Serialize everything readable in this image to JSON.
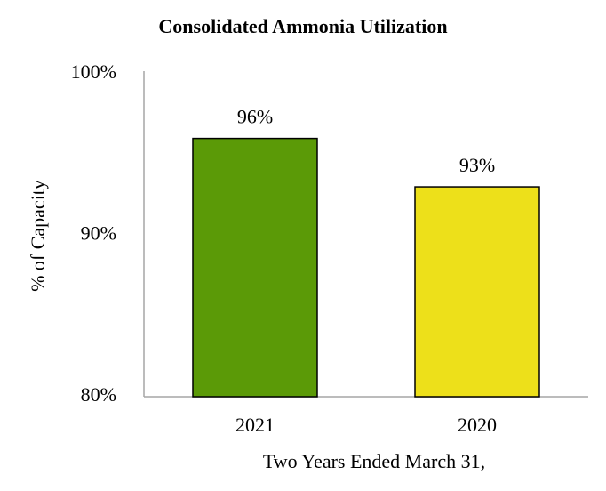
{
  "chart_data": {
    "type": "bar",
    "title": "Consolidated Ammonia Utilization",
    "y_label": "% of Capacity",
    "x_label": "Two Years Ended March 31,",
    "categories": [
      "2021",
      "2020"
    ],
    "values": [
      96,
      93
    ],
    "value_labels": [
      "96%",
      "93%"
    ],
    "colors": [
      "#5b9a07",
      "#ede01a"
    ],
    "ylim": [
      80,
      100
    ],
    "yticks": [
      {
        "value": 80,
        "label": "80%"
      },
      {
        "value": 90,
        "label": "90%"
      },
      {
        "value": 100,
        "label": "100%"
      }
    ],
    "grid": false
  }
}
